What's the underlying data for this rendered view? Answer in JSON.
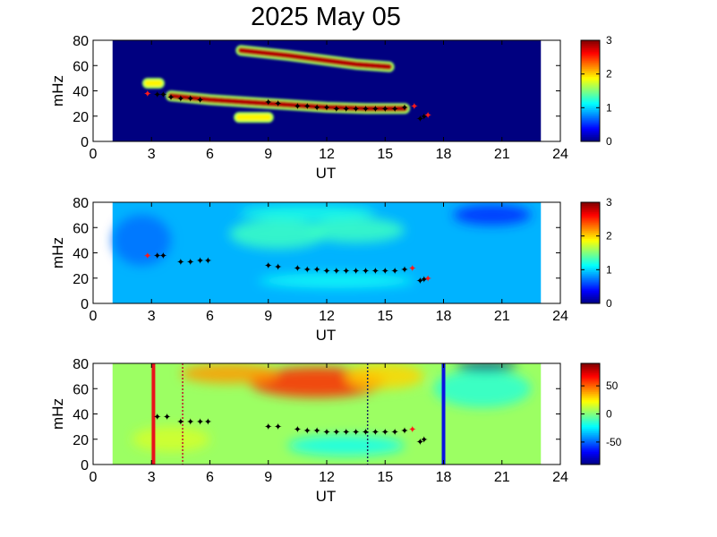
{
  "title": "2025 May 05",
  "chart_data": [
    {
      "type": "heatmap",
      "panel": "top",
      "xlabel": "UT",
      "ylabel": "mHz",
      "xlim": [
        0,
        24
      ],
      "ylim": [
        0,
        80
      ],
      "xticks": [
        "0",
        "3",
        "6",
        "9",
        "12",
        "15",
        "18",
        "21",
        "24"
      ],
      "yticks": [
        "0",
        "20",
        "40",
        "60",
        "80"
      ],
      "data_x_range": [
        1,
        23
      ],
      "colorbar": {
        "range": [
          0,
          3
        ],
        "ticks": [
          "0",
          "1",
          "2",
          "3"
        ],
        "colormap": "jet"
      },
      "background_level": 0,
      "features": [
        {
          "x": [
            7.6,
            10.0,
            12.0,
            13.5,
            15.2
          ],
          "y": [
            72,
            68,
            64,
            61,
            59
          ],
          "level": 3
        },
        {
          "x": [
            4.0,
            6.0,
            8.0,
            10.0,
            12.0,
            14.0,
            16.0
          ],
          "y": [
            36,
            33,
            31,
            29,
            27,
            26,
            26
          ],
          "level": 3
        },
        {
          "x": [
            2.8,
            3.4
          ],
          "y": [
            46,
            46
          ],
          "level": 2
        },
        {
          "x": [
            7.5,
            9.0
          ],
          "y": [
            19,
            19
          ],
          "level": 2
        }
      ],
      "markers": [
        {
          "x": 3.3,
          "y": 37,
          "color": "black"
        },
        {
          "x": 3.6,
          "y": 37,
          "color": "black"
        },
        {
          "x": 4.0,
          "y": 35,
          "color": "black"
        },
        {
          "x": 4.5,
          "y": 34,
          "color": "black"
        },
        {
          "x": 5.0,
          "y": 34,
          "color": "black"
        },
        {
          "x": 5.5,
          "y": 33,
          "color": "black"
        },
        {
          "x": 9.0,
          "y": 31,
          "color": "black"
        },
        {
          "x": 9.5,
          "y": 30,
          "color": "black"
        },
        {
          "x": 10.5,
          "y": 28,
          "color": "black"
        },
        {
          "x": 11.0,
          "y": 28,
          "color": "black"
        },
        {
          "x": 11.5,
          "y": 27,
          "color": "black"
        },
        {
          "x": 12.0,
          "y": 27,
          "color": "black"
        },
        {
          "x": 12.5,
          "y": 26,
          "color": "black"
        },
        {
          "x": 13.0,
          "y": 26,
          "color": "black"
        },
        {
          "x": 13.5,
          "y": 26,
          "color": "black"
        },
        {
          "x": 14.0,
          "y": 26,
          "color": "black"
        },
        {
          "x": 14.5,
          "y": 26,
          "color": "black"
        },
        {
          "x": 15.0,
          "y": 26,
          "color": "black"
        },
        {
          "x": 15.5,
          "y": 26,
          "color": "black"
        },
        {
          "x": 16.0,
          "y": 27,
          "color": "black"
        },
        {
          "x": 16.8,
          "y": 18,
          "color": "black"
        },
        {
          "x": 17.0,
          "y": 20,
          "color": "black"
        },
        {
          "x": 2.8,
          "y": 38,
          "color": "red"
        },
        {
          "x": 16.5,
          "y": 28,
          "color": "red"
        },
        {
          "x": 17.2,
          "y": 21,
          "color": "red"
        }
      ]
    },
    {
      "type": "heatmap",
      "panel": "middle",
      "xlabel": "UT",
      "ylabel": "mHz",
      "xlim": [
        0,
        24
      ],
      "ylim": [
        0,
        80
      ],
      "xticks": [
        "0",
        "3",
        "6",
        "9",
        "12",
        "15",
        "18",
        "21",
        "24"
      ],
      "yticks": [
        "0",
        "20",
        "40",
        "60",
        "80"
      ],
      "data_x_range": [
        1,
        23
      ],
      "colorbar": {
        "range": [
          0,
          3
        ],
        "ticks": [
          "0",
          "1",
          "2",
          "3"
        ],
        "colormap": "jet"
      },
      "background_level": 0.9,
      "blobs": [
        {
          "x": 9.5,
          "y": 55,
          "rx": 2.5,
          "ry": 12,
          "level": 1.3
        },
        {
          "x": 13.5,
          "y": 58,
          "rx": 2.5,
          "ry": 10,
          "level": 1.3
        },
        {
          "x": 11.0,
          "y": 72,
          "rx": 3.5,
          "ry": 6,
          "level": 1.2
        },
        {
          "x": 12.5,
          "y": 18,
          "rx": 4.0,
          "ry": 6,
          "level": 1.15
        },
        {
          "x": 2.5,
          "y": 50,
          "rx": 1.5,
          "ry": 20,
          "level": 0.7
        },
        {
          "x": 20.5,
          "y": 70,
          "rx": 2.0,
          "ry": 8,
          "level": 0.5
        }
      ],
      "markers": [
        {
          "x": 3.3,
          "y": 38,
          "color": "black"
        },
        {
          "x": 3.6,
          "y": 38,
          "color": "black"
        },
        {
          "x": 4.5,
          "y": 33,
          "color": "black"
        },
        {
          "x": 5.0,
          "y": 33,
          "color": "black"
        },
        {
          "x": 5.5,
          "y": 34,
          "color": "black"
        },
        {
          "x": 5.9,
          "y": 34,
          "color": "black"
        },
        {
          "x": 9.0,
          "y": 30,
          "color": "black"
        },
        {
          "x": 9.5,
          "y": 29,
          "color": "black"
        },
        {
          "x": 10.5,
          "y": 28,
          "color": "black"
        },
        {
          "x": 11.0,
          "y": 27,
          "color": "black"
        },
        {
          "x": 11.5,
          "y": 27,
          "color": "black"
        },
        {
          "x": 12.0,
          "y": 26,
          "color": "black"
        },
        {
          "x": 12.5,
          "y": 26,
          "color": "black"
        },
        {
          "x": 13.0,
          "y": 26,
          "color": "black"
        },
        {
          "x": 13.5,
          "y": 26,
          "color": "black"
        },
        {
          "x": 14.0,
          "y": 26,
          "color": "black"
        },
        {
          "x": 14.5,
          "y": 26,
          "color": "black"
        },
        {
          "x": 15.0,
          "y": 26,
          "color": "black"
        },
        {
          "x": 15.5,
          "y": 26,
          "color": "black"
        },
        {
          "x": 16.0,
          "y": 27,
          "color": "black"
        },
        {
          "x": 16.8,
          "y": 18,
          "color": "black"
        },
        {
          "x": 17.0,
          "y": 19,
          "color": "black"
        },
        {
          "x": 2.8,
          "y": 38,
          "color": "red"
        },
        {
          "x": 16.4,
          "y": 28,
          "color": "red"
        },
        {
          "x": 17.2,
          "y": 20,
          "color": "red"
        }
      ]
    },
    {
      "type": "heatmap",
      "panel": "bottom",
      "xlabel": "UT",
      "ylabel": "mHz",
      "xlim": [
        0,
        24
      ],
      "ylim": [
        0,
        80
      ],
      "xticks": [
        "0",
        "3",
        "6",
        "9",
        "12",
        "15",
        "18",
        "21",
        "24"
      ],
      "yticks": [
        "0",
        "20",
        "40",
        "60",
        "80"
      ],
      "data_x_range": [
        1,
        23
      ],
      "colorbar": {
        "range": [
          -90,
          90
        ],
        "ticks": [
          "50",
          "0",
          "-50"
        ],
        "tick_values": [
          50,
          0,
          -50
        ],
        "colormap": "jet"
      },
      "background_level": 5,
      "blobs": [
        {
          "x": 11.5,
          "y": 65,
          "rx": 3.5,
          "ry": 12,
          "level": 60
        },
        {
          "x": 7.0,
          "y": 72,
          "rx": 2.5,
          "ry": 8,
          "level": 40
        },
        {
          "x": 15.0,
          "y": 70,
          "rx": 2.0,
          "ry": 10,
          "level": 30
        },
        {
          "x": 13.0,
          "y": 15,
          "rx": 3.0,
          "ry": 8,
          "level": -20
        },
        {
          "x": 20.0,
          "y": 60,
          "rx": 2.5,
          "ry": 15,
          "level": -15
        },
        {
          "x": 4.0,
          "y": 20,
          "rx": 2.0,
          "ry": 10,
          "level": 15
        },
        {
          "x": 20.2,
          "y": 78,
          "rx": 1.6,
          "ry": 4,
          "level": -90
        }
      ],
      "vlines": [
        {
          "x": 3.1,
          "color": "#e8141c",
          "style": "solid",
          "width": 4
        },
        {
          "x": 4.6,
          "color": "#c0142a",
          "style": "dotted",
          "width": 1.5
        },
        {
          "x": 14.1,
          "color": "#14285a",
          "style": "dotted",
          "width": 1.5
        },
        {
          "x": 18.0,
          "color": "#0a14e0",
          "style": "solid",
          "width": 4
        }
      ],
      "markers": [
        {
          "x": 3.3,
          "y": 38,
          "color": "black"
        },
        {
          "x": 3.8,
          "y": 38,
          "color": "black"
        },
        {
          "x": 4.5,
          "y": 34,
          "color": "black"
        },
        {
          "x": 5.0,
          "y": 34,
          "color": "black"
        },
        {
          "x": 5.5,
          "y": 34,
          "color": "black"
        },
        {
          "x": 5.9,
          "y": 34,
          "color": "black"
        },
        {
          "x": 9.0,
          "y": 30,
          "color": "black"
        },
        {
          "x": 9.5,
          "y": 30,
          "color": "black"
        },
        {
          "x": 10.5,
          "y": 28,
          "color": "black"
        },
        {
          "x": 11.0,
          "y": 27,
          "color": "black"
        },
        {
          "x": 11.5,
          "y": 27,
          "color": "black"
        },
        {
          "x": 12.0,
          "y": 26,
          "color": "black"
        },
        {
          "x": 12.5,
          "y": 26,
          "color": "black"
        },
        {
          "x": 13.0,
          "y": 26,
          "color": "black"
        },
        {
          "x": 13.5,
          "y": 26,
          "color": "black"
        },
        {
          "x": 14.0,
          "y": 26,
          "color": "black"
        },
        {
          "x": 14.5,
          "y": 26,
          "color": "black"
        },
        {
          "x": 15.0,
          "y": 26,
          "color": "black"
        },
        {
          "x": 15.5,
          "y": 26,
          "color": "black"
        },
        {
          "x": 16.0,
          "y": 27,
          "color": "black"
        },
        {
          "x": 16.8,
          "y": 18,
          "color": "black"
        },
        {
          "x": 17.0,
          "y": 20,
          "color": "black"
        },
        {
          "x": 16.4,
          "y": 28,
          "color": "red"
        }
      ]
    }
  ]
}
